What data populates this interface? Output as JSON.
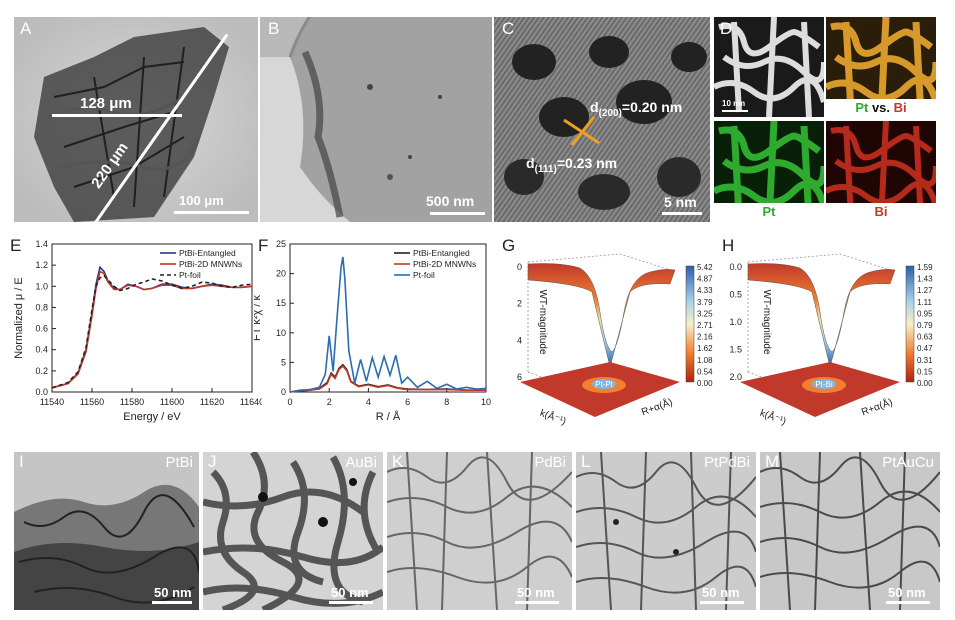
{
  "panels": {
    "A": {
      "label": "A",
      "meas1": "128 μm",
      "meas2": "220 μm",
      "scale": "100 μm"
    },
    "B": {
      "label": "B",
      "scale": "500 nm"
    },
    "C": {
      "label": "C",
      "d200": "d(200)=0.20 nm",
      "d200_main": "d",
      "d200_sub": "(200)",
      "d200_val": "=0.20 nm",
      "d111_main": "d",
      "d111_sub": "(111)",
      "d111_val": "=0.23 nm",
      "scale": "5 nm"
    },
    "D": {
      "label": "D",
      "scale": "10 nm",
      "map_overlay_pt": "Pt",
      "map_overlay_vs": " vs. ",
      "map_overlay_bi": "Bi",
      "map_pt": "Pt",
      "map_bi": "Bi"
    },
    "I": {
      "label": "I",
      "name": "PtBi",
      "scale": "50 nm"
    },
    "J": {
      "label": "J",
      "name": "AuBi",
      "scale": "50 nm"
    },
    "K": {
      "label": "K",
      "name": "PdBi",
      "scale": "50 nm"
    },
    "L": {
      "label": "L",
      "name": "PtPdBi",
      "scale": "50 nm"
    },
    "M": {
      "label": "M",
      "name": "PtAuCu",
      "scale": "50 nm"
    }
  },
  "colors": {
    "entangled": "#1f3a8a",
    "mnwns": "#c0392b",
    "foil": "#222222",
    "ftfoil": "#2b6cb0",
    "pt_green": "#2eaa2e",
    "bi_red": "#c0392b"
  },
  "chart_data": [
    {
      "panel": "E",
      "type": "line",
      "xlabel": "Energy / eV",
      "ylabel": "Normalized μ / E",
      "xlim": [
        11540,
        11640
      ],
      "ylim": [
        0.0,
        1.4
      ],
      "xticks": [
        "11540",
        "11560",
        "11580",
        "11600",
        "11620",
        "11640"
      ],
      "yticks": [
        "0.0",
        "0.2",
        "0.4",
        "0.6",
        "0.8",
        "1.0",
        "1.2",
        "1.4"
      ],
      "legend": [
        "PtBi-Entangled",
        "PtBi-2D MNWNs",
        "Pt-foil"
      ],
      "series": [
        {
          "name": "PtBi-Entangled",
          "x": [
            11540,
            11548,
            11553,
            11557,
            11560,
            11562,
            11564,
            11566,
            11568,
            11571,
            11574,
            11578,
            11582,
            11586,
            11590,
            11595,
            11600,
            11605,
            11610,
            11615,
            11620,
            11625,
            11630,
            11635,
            11640
          ],
          "y": [
            0.04,
            0.08,
            0.18,
            0.4,
            0.75,
            1.02,
            1.18,
            1.14,
            1.05,
            0.98,
            0.97,
            1.02,
            1.0,
            0.97,
            0.98,
            1.02,
            1.02,
            0.99,
            0.98,
            1.0,
            1.02,
            1.01,
            0.99,
            0.99,
            1.0
          ]
        },
        {
          "name": "PtBi-2D MNWNs",
          "x": [
            11540,
            11548,
            11553,
            11557,
            11560,
            11562,
            11564,
            11566,
            11568,
            11571,
            11574,
            11578,
            11582,
            11586,
            11590,
            11595,
            11600,
            11605,
            11610,
            11615,
            11620,
            11625,
            11630,
            11635,
            11640
          ],
          "y": [
            0.04,
            0.08,
            0.17,
            0.38,
            0.72,
            0.98,
            1.14,
            1.12,
            1.04,
            0.97,
            0.97,
            1.01,
            1.0,
            0.97,
            0.98,
            1.01,
            1.01,
            0.98,
            0.98,
            1.0,
            1.01,
            1.0,
            0.99,
            0.99,
            1.0
          ]
        },
        {
          "name": "Pt-foil",
          "x": [
            11540,
            11548,
            11553,
            11557,
            11560,
            11562,
            11564,
            11566,
            11568,
            11571,
            11574,
            11578,
            11582,
            11586,
            11590,
            11595,
            11600,
            11605,
            11610,
            11615,
            11620,
            11625,
            11630,
            11635,
            11640
          ],
          "y": [
            0.04,
            0.09,
            0.19,
            0.42,
            0.78,
            1.0,
            1.08,
            1.1,
            1.06,
            1.0,
            0.96,
            0.98,
            1.02,
            1.04,
            1.07,
            1.05,
            1.01,
            0.98,
            1.0,
            1.04,
            1.03,
            1.0,
            0.99,
            1.01,
            1.02
          ]
        }
      ]
    },
    {
      "panel": "F",
      "type": "line",
      "xlabel": "R / Å",
      "ylabel": "FT k²χ / k",
      "xlim": [
        0,
        10
      ],
      "ylim": [
        0,
        25
      ],
      "xticks": [
        "0",
        "2",
        "4",
        "6",
        "8",
        "10"
      ],
      "yticks": [
        "0",
        "5",
        "10",
        "15",
        "20",
        "25"
      ],
      "legend": [
        "PtBi-Entangled",
        "PtBi-2D MNWNs",
        "Pt-foil"
      ],
      "series": [
        {
          "name": "PtBi-Entangled",
          "x": [
            0,
            0.5,
            1,
            1.5,
            1.9,
            2.1,
            2.3,
            2.5,
            2.7,
            2.9,
            3.1,
            3.5,
            4,
            4.5,
            5,
            5.5,
            6,
            7,
            8,
            9,
            10
          ],
          "y": [
            0,
            0.2,
            0.3,
            0.6,
            1.6,
            3.2,
            2.5,
            4.0,
            4.6,
            3.8,
            1.8,
            1.0,
            1.3,
            0.9,
            1.2,
            0.7,
            0.5,
            0.4,
            0.5,
            0.3,
            0.3
          ]
        },
        {
          "name": "PtBi-2D MNWNs",
          "x": [
            0,
            0.5,
            1,
            1.5,
            1.9,
            2.1,
            2.3,
            2.5,
            2.7,
            2.9,
            3.1,
            3.5,
            4,
            4.5,
            5,
            5.5,
            6,
            7,
            8,
            9,
            10
          ],
          "y": [
            0,
            0.2,
            0.3,
            0.5,
            1.4,
            3.0,
            2.3,
            3.8,
            4.4,
            3.6,
            1.7,
            0.9,
            1.2,
            0.8,
            1.1,
            0.6,
            0.4,
            0.4,
            0.4,
            0.3,
            0.3
          ]
        },
        {
          "name": "Pt-foil",
          "x": [
            0,
            0.5,
            1,
            1.5,
            1.8,
            2.0,
            2.2,
            2.4,
            2.6,
            2.7,
            2.8,
            3.0,
            3.3,
            3.6,
            3.9,
            4.2,
            4.5,
            4.8,
            5.1,
            5.4,
            5.7,
            6.0,
            6.5,
            7,
            7.5,
            8,
            8.5,
            9,
            9.5,
            10
          ],
          "y": [
            0,
            0.3,
            0.4,
            0.8,
            3.0,
            9.5,
            3.5,
            12.5,
            21.0,
            22.8,
            19.0,
            7.0,
            1.5,
            5.5,
            1.8,
            5.8,
            2.5,
            6.0,
            2.8,
            6.2,
            1.5,
            2.5,
            0.8,
            1.8,
            0.6,
            1.3,
            0.5,
            0.8,
            0.5,
            0.6
          ]
        }
      ]
    },
    {
      "panel": "G",
      "type": "heatmap",
      "zlabel": "WT-magnitude",
      "xlabel": "k(Å⁻¹)",
      "ylabel": "R+α(Å)",
      "zticks": [
        "0",
        "2",
        "4",
        "6"
      ],
      "colorbar": [
        "5.42",
        "4.87",
        "4.33",
        "3.79",
        "3.25",
        "2.71",
        "2.16",
        "1.62",
        "1.08",
        "0.54",
        "0.00"
      ],
      "peak_label": "Pt-Pt"
    },
    {
      "panel": "H",
      "type": "heatmap",
      "zlabel": "WT-magnitude",
      "xlabel": "k(Å⁻¹)",
      "ylabel": "R+α(Å)",
      "zticks": [
        "0.0",
        "0.5",
        "1.0",
        "1.5",
        "2.0"
      ],
      "colorbar": [
        "1.59",
        "1.43",
        "1.27",
        "1.11",
        "0.95",
        "0.79",
        "0.63",
        "0.47",
        "0.31",
        "0.15",
        "0.00"
      ],
      "peak_label": "Pt-Bi"
    }
  ]
}
